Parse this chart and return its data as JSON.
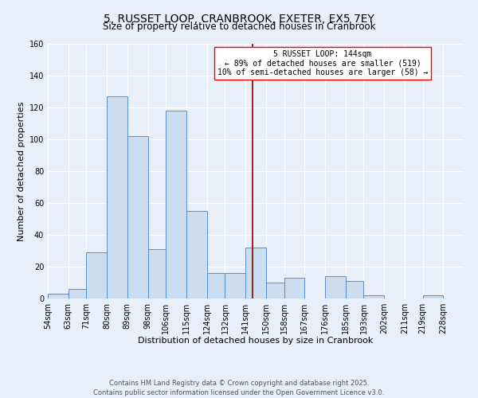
{
  "title": "5, RUSSET LOOP, CRANBROOK, EXETER, EX5 7EY",
  "subtitle": "Size of property relative to detached houses in Cranbrook",
  "xlabel": "Distribution of detached houses by size in Cranbrook",
  "ylabel": "Number of detached properties",
  "footer1": "Contains HM Land Registry data © Crown copyright and database right 2025.",
  "footer2": "Contains public sector information licensed under the Open Government Licence v3.0.",
  "bin_labels": [
    "54sqm",
    "63sqm",
    "71sqm",
    "80sqm",
    "89sqm",
    "98sqm",
    "106sqm",
    "115sqm",
    "124sqm",
    "132sqm",
    "141sqm",
    "150sqm",
    "158sqm",
    "167sqm",
    "176sqm",
    "185sqm",
    "193sqm",
    "202sqm",
    "211sqm",
    "219sqm",
    "228sqm"
  ],
  "bin_edges": [
    54,
    63,
    71,
    80,
    89,
    98,
    106,
    115,
    124,
    132,
    141,
    150,
    158,
    167,
    176,
    185,
    193,
    202,
    211,
    219,
    228,
    237
  ],
  "bar_heights": [
    3,
    6,
    29,
    127,
    102,
    31,
    118,
    55,
    16,
    16,
    32,
    10,
    13,
    0,
    14,
    11,
    2,
    0,
    0,
    2,
    0
  ],
  "bar_color": "#ccddf0",
  "bar_edge_color": "#5b8ec4",
  "property_size": 144,
  "vline_color": "#8b0000",
  "annotation_title": "5 RUSSET LOOP: 144sqm",
  "annotation_line1": "← 89% of detached houses are smaller (519)",
  "annotation_line2": "10% of semi-detached houses are larger (58) →",
  "ylim": [
    0,
    160
  ],
  "yticks": [
    0,
    20,
    40,
    60,
    80,
    100,
    120,
    140,
    160
  ],
  "bg_color": "#e8eff8",
  "grid_color": "#ffffff",
  "title_fontsize": 10,
  "subtitle_fontsize": 8.5,
  "xlabel_fontsize": 8,
  "ylabel_fontsize": 8,
  "tick_fontsize": 7,
  "annot_fontsize": 7,
  "footer_fontsize": 6
}
